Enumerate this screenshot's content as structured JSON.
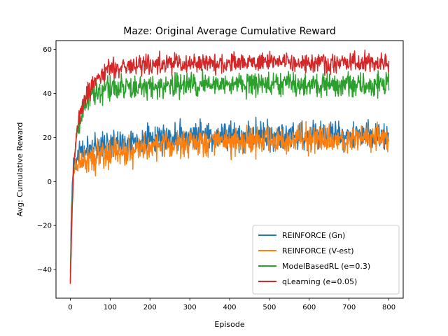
{
  "chart_data": {
    "type": "line",
    "title": "Maze: Original Average Cumulative Reward",
    "xlabel": "Episode",
    "ylabel": "Avg: Cumulative Reward",
    "xlim": [
      -36,
      836
    ],
    "ylim": [
      -53,
      64
    ],
    "xticks": [
      0,
      100,
      200,
      300,
      400,
      500,
      600,
      700,
      800
    ],
    "yticks": [
      -40,
      -20,
      0,
      20,
      40,
      60
    ],
    "grid": false,
    "legend_position": "lower-right",
    "series": [
      {
        "name": "REINFORCE (Gn)",
        "color": "#1f77b4",
        "x": [
          0,
          2,
          4,
          6,
          8,
          10,
          15,
          20,
          30,
          40,
          60,
          80,
          100,
          150,
          200,
          250,
          300,
          350,
          400,
          500,
          600,
          700,
          800
        ],
        "values": [
          -42,
          -20,
          -5,
          3,
          8,
          9,
          11,
          12,
          13,
          14,
          15.5,
          16.5,
          17,
          18,
          19,
          20,
          20.5,
          21,
          21,
          21,
          21,
          21,
          21
        ],
        "noise": 3.2
      },
      {
        "name": "REINFORCE (V-est)",
        "color": "#ff7f0e",
        "x": [
          0,
          2,
          4,
          6,
          8,
          10,
          15,
          20,
          30,
          40,
          60,
          80,
          100,
          150,
          200,
          250,
          300,
          350,
          400,
          500,
          600,
          700,
          800
        ],
        "values": [
          -45,
          -25,
          -10,
          -2,
          3,
          5,
          7,
          8,
          9,
          10,
          11,
          12,
          12.5,
          14.5,
          16,
          17,
          18,
          18.5,
          19,
          19,
          19,
          19,
          19
        ],
        "noise": 3.2
      },
      {
        "name": "ModelBasedRL (e=0.3)",
        "color": "#2ca02c",
        "x": [
          0,
          2,
          4,
          6,
          8,
          10,
          15,
          20,
          30,
          40,
          50,
          60,
          80,
          100,
          150,
          200,
          300,
          400,
          500,
          600,
          700,
          800
        ],
        "values": [
          -45,
          -30,
          -15,
          -2,
          5,
          10,
          18,
          24,
          30,
          35,
          38,
          40,
          41.5,
          42,
          43,
          43,
          44,
          44,
          44,
          44,
          44,
          44
        ],
        "noise": 2.8
      },
      {
        "name": "qLearning (e=0.05)",
        "color": "#d62728",
        "x": [
          0,
          2,
          4,
          6,
          8,
          10,
          15,
          20,
          30,
          40,
          50,
          60,
          80,
          100,
          150,
          200,
          300,
          400,
          500,
          600,
          700,
          800
        ],
        "values": [
          -46,
          -32,
          -18,
          -6,
          3,
          10,
          20,
          27,
          34,
          39,
          42,
          45,
          49,
          51,
          52.5,
          53,
          53.5,
          54,
          54,
          54,
          54,
          54
        ],
        "noise": 2.2
      }
    ]
  }
}
